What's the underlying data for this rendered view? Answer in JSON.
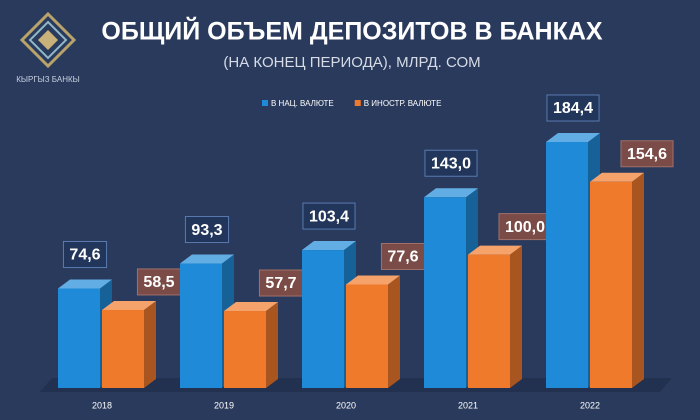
{
  "logo": {
    "text": "КЫРГЫЗ БАНКЫ"
  },
  "chart_data": {
    "type": "bar3d",
    "title": "ОБЩИЙ ОБЪЕМ ДЕПОЗИТОВ В БАНКАХ",
    "subtitle": "(НА КОНЕЦ ПЕРИОДА), МЛРД. СОМ",
    "categories": [
      "2018",
      "2019",
      "2020",
      "2021",
      "2022"
    ],
    "series": [
      {
        "name": "В НАЦ. ВАЛЮТЕ",
        "color": "#1f8bd8",
        "values": [
          74.6,
          93.3,
          103.4,
          143.0,
          184.4
        ],
        "value_labels": [
          "74,6",
          "93,3",
          "103,4",
          "143,0",
          "184,4"
        ]
      },
      {
        "name": "В ИНОСТР. ВАЛЮТЕ",
        "color": "#f07a2c",
        "values": [
          58.5,
          57.7,
          77.6,
          100.0,
          154.6
        ],
        "value_labels": [
          "58,5",
          "57,7",
          "77,6",
          "100,0",
          "154,6"
        ]
      }
    ],
    "legend": "top"
  }
}
